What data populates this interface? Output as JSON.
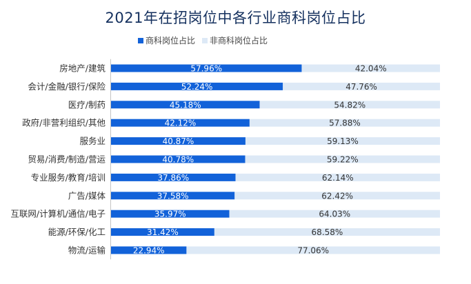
{
  "chart_data": {
    "type": "bar",
    "orientation": "horizontal",
    "stacked": true,
    "title": "2021年在招岗位中各行业商科岗位占比",
    "categories": [
      "房地产/建筑",
      "会计/金融/银行/保险",
      "医疗/制药",
      "政府/非营利组织/其他",
      "服务业",
      "贸易/消费/制造/营运",
      "专业服务/教育/培训",
      "广告/媒体",
      "互联网/计算机/通信/电子",
      "能源/环保/化工",
      "物流/运输"
    ],
    "series": [
      {
        "name": "商科岗位占比",
        "color": "#1262d9",
        "values": [
          57.96,
          52.24,
          45.18,
          42.12,
          40.87,
          40.78,
          37.86,
          37.58,
          35.97,
          31.42,
          22.94
        ],
        "labels": [
          "57.96%",
          "52.24%",
          "45.18%",
          "42.12%",
          "40.87%",
          "40.78%",
          "37.86%",
          "37.58%",
          "35.97%",
          "31.42%",
          "22.94%"
        ]
      },
      {
        "name": "非商科岗位占比",
        "color": "#dde9f6",
        "values": [
          42.04,
          47.76,
          54.82,
          57.88,
          59.13,
          59.22,
          62.14,
          62.42,
          64.03,
          68.58,
          77.06
        ],
        "labels": [
          "42.04%",
          "47.76%",
          "54.82%",
          "57.88%",
          "59.13%",
          "59.22%",
          "62.14%",
          "62.42%",
          "64.03%",
          "68.58%",
          "77.06%"
        ]
      }
    ],
    "xlim": [
      0,
      100
    ],
    "legend_position": "top-center",
    "grid": false
  }
}
